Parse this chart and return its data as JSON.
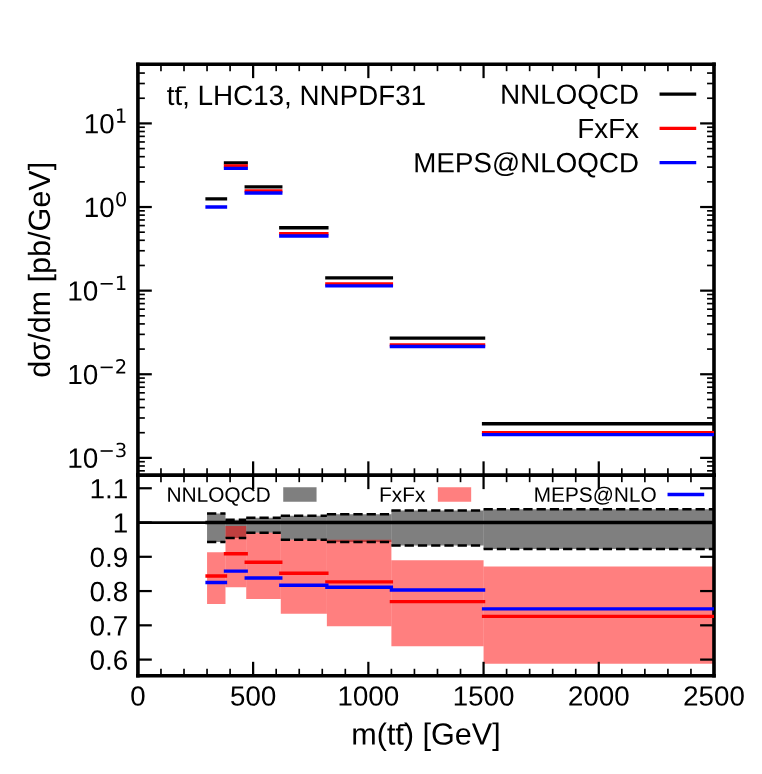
{
  "chart_data": [
    {
      "type": "line",
      "ylabel": "dσ/dm [pb/GeV]",
      "annotations": [
        "tt̄, LHC13, NNPDF31"
      ],
      "x": [
        300,
        380,
        null,
        380,
        470,
        null,
        470,
        620,
        null,
        620,
        820,
        null,
        820,
        1100,
        null,
        1100,
        1500,
        null,
        1500,
        2500
      ],
      "series": [
        {
          "name": "NNLOQCD",
          "color": "#000000",
          "values": [
            1.25,
            1.25,
            null,
            3.37,
            3.37,
            null,
            1.74,
            1.74,
            null,
            0.565,
            0.565,
            null,
            0.142,
            0.142,
            null,
            0.027,
            0.027,
            null,
            0.00256,
            0.00256
          ]
        },
        {
          "name": "FxFx",
          "color": "#ff0000",
          "values": [
            null,
            null,
            null,
            3.1,
            3.1,
            null,
            1.56,
            1.56,
            null,
            0.48,
            0.48,
            null,
            0.12,
            0.12,
            null,
            0.0225,
            0.0225,
            null,
            0.002,
            0.002
          ]
        },
        {
          "name": "MEPS@NLOQCD",
          "color": "#0000ff",
          "values": [
            1.0,
            1.0,
            null,
            2.9,
            2.9,
            null,
            1.47,
            1.47,
            null,
            0.45,
            0.45,
            null,
            0.114,
            0.114,
            null,
            0.0215,
            0.0215,
            null,
            0.0019,
            0.0019
          ]
        }
      ],
      "log": "y",
      "xlim": [
        0,
        2500
      ],
      "xticks": [
        0,
        500,
        1000,
        1500,
        2000,
        2500
      ],
      "ylim": [
        0.00062,
        51
      ],
      "yticks": [
        {
          "value": 0.001,
          "label": "10$^{−3}$"
        },
        {
          "value": 0.01,
          "label": "10$^{−2}$"
        },
        {
          "value": 0.1,
          "label": "10$^{−1}$"
        },
        {
          "value": 1,
          "label": "10$^{0}$"
        },
        {
          "value": 10,
          "label": "10$^{1}$"
        }
      ],
      "tick_labels": "y",
      "legend": "top right",
      "grid": false
    },
    {
      "type": "line",
      "xlabel": "m(tt̄) [GeV]",
      "x": [
        300,
        380,
        null,
        380,
        470,
        null,
        470,
        620,
        null,
        620,
        820,
        null,
        820,
        1100,
        null,
        1100,
        1500,
        null,
        1500,
        2500
      ],
      "series": [
        {
          "name": "NNLOQCD",
          "color": "#000000",
          "values": [
            1,
            1,
            null,
            1,
            1,
            null,
            1,
            1,
            null,
            1,
            1,
            null,
            1,
            1,
            null,
            1,
            1,
            null,
            1,
            1
          ],
          "lower": [
            0.943,
            0.943,
            null,
            0.955,
            0.955,
            null,
            0.97,
            0.97,
            null,
            0.95,
            0.95,
            null,
            0.943,
            0.943,
            null,
            0.933,
            0.933,
            null,
            0.923,
            0.923
          ],
          "upper": [
            1.026,
            1.026,
            null,
            1.008,
            1.008,
            null,
            1.014,
            1.014,
            null,
            1.02,
            1.02,
            null,
            1.024,
            1.024,
            null,
            1.035,
            1.035,
            null,
            1.039,
            1.039
          ]
        },
        {
          "color": "#000000",
          "line_style": "dashed",
          "values": [
            0.943,
            0.943,
            null,
            0.955,
            0.955,
            null,
            0.97,
            0.97,
            null,
            0.95,
            0.95,
            null,
            0.943,
            0.943,
            null,
            0.933,
            0.933,
            null,
            0.923,
            0.923
          ]
        },
        {
          "color": "#000000",
          "line_style": "dashed",
          "values": [
            1.026,
            1.026,
            null,
            1.008,
            1.008,
            null,
            1.014,
            1.014,
            null,
            1.02,
            1.02,
            null,
            1.024,
            1.024,
            null,
            1.035,
            1.035,
            null,
            1.039,
            1.039
          ]
        },
        {
          "name": "FxFx",
          "color": "#ff0000",
          "values": [
            0.844,
            0.844,
            null,
            0.909,
            0.909,
            null,
            0.884,
            0.884,
            null,
            0.852,
            0.852,
            null,
            0.827,
            0.827,
            null,
            0.769,
            0.769,
            null,
            0.726,
            0.726
          ],
          "lower": [
            0.762,
            0.762,
            null,
            0.811,
            0.811,
            null,
            0.777,
            0.777,
            null,
            0.734,
            0.734,
            null,
            0.697,
            0.697,
            null,
            0.639,
            0.639,
            null,
            0.588,
            0.588
          ],
          "upper": [
            0.913,
            0.913,
            null,
            0.99,
            0.99,
            null,
            0.97,
            0.97,
            null,
            0.95,
            0.95,
            null,
            0.95,
            0.95,
            null,
            0.89,
            0.89,
            null,
            0.872,
            0.872
          ]
        },
        {
          "name": "MEPS@NLO",
          "color": "#0000ff",
          "values": [
            0.825,
            0.825,
            null,
            0.858,
            0.858,
            null,
            0.838,
            0.838,
            null,
            0.817,
            0.817,
            null,
            0.811,
            0.811,
            null,
            0.803,
            0.803,
            null,
            0.748,
            0.748
          ]
        }
      ],
      "ref_lines": [
        {
          "axis": "y",
          "value": 1,
          "color": "#000000"
        }
      ],
      "xlim": [
        0,
        2500
      ],
      "xticks": [
        0,
        500,
        1000,
        1500,
        2000,
        2500
      ],
      "ylim": [
        0.553,
        1.138
      ],
      "yticks": [
        0.6,
        0.7,
        0.8,
        0.9,
        1,
        1.1
      ],
      "legend": "top",
      "grid": false
    }
  ]
}
